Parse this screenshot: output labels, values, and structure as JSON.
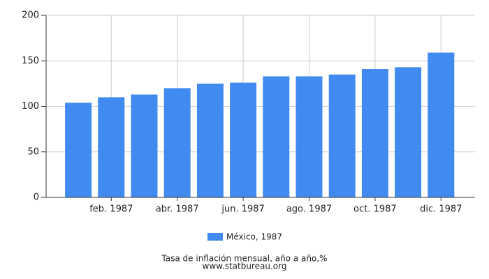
{
  "chart_data": {
    "type": "bar",
    "categories": [
      null,
      "feb. 1987",
      null,
      "abr. 1987",
      null,
      "jun. 1987",
      null,
      "ago. 1987",
      null,
      "oct. 1987",
      null,
      "dic. 1987"
    ],
    "series": [
      {
        "name": "México, 1987",
        "color": "#418af0",
        "values": [
          104,
          110,
          113,
          120,
          125,
          126,
          133,
          133,
          135,
          141,
          143,
          159
        ]
      }
    ],
    "ylim": [
      0,
      200
    ],
    "yticks": [
      0,
      50,
      100,
      150,
      200
    ],
    "grid": true,
    "caption": "Tasa de inflación mensual, año a año,%",
    "source": "www.statbureau.org"
  }
}
